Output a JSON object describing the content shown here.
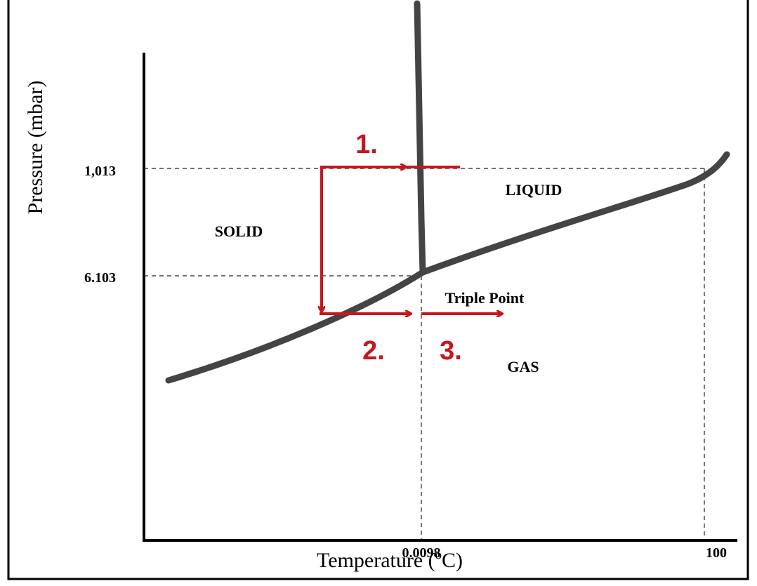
{
  "axes": {
    "y_label": "Pressure (mbar)",
    "x_label": "Temperature (ºC)",
    "y_ticks": [
      "1,013",
      "6.103"
    ],
    "x_ticks": [
      "0.0098",
      "100"
    ]
  },
  "regions": [
    "SOLID",
    "LIQUID",
    "GAS"
  ],
  "annotation": "Triple Point",
  "steps": [
    "1.",
    "2.",
    "3."
  ]
}
